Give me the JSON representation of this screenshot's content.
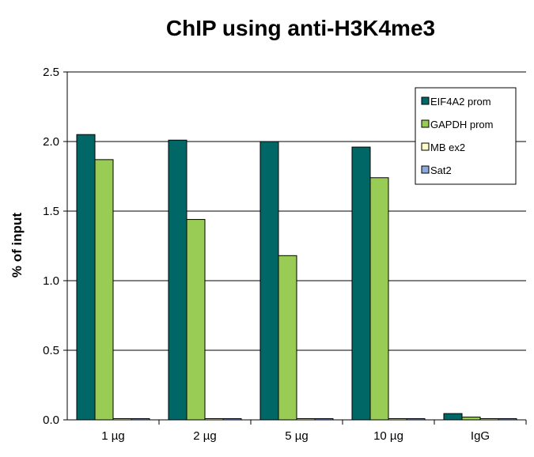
{
  "chart_data": {
    "type": "bar",
    "title": "ChIP using anti-H3K4me3",
    "xlabel": "",
    "ylabel": "% of input",
    "ylim": [
      0,
      2.5
    ],
    "yticks": [
      "0.0",
      "0.5",
      "1.0",
      "1.5",
      "2.0",
      "2.5"
    ],
    "categories": [
      "1 µg",
      "2 µg",
      "5 µg",
      "10 µg",
      "IgG"
    ],
    "series": [
      {
        "name": "EIF4A2 prom",
        "color": "#006666",
        "values": [
          2.05,
          2.01,
          2.0,
          1.96,
          0.045
        ]
      },
      {
        "name": "GAPDH prom",
        "color": "#99CC55",
        "values": [
          1.87,
          1.44,
          1.18,
          1.74,
          0.02
        ]
      },
      {
        "name": "MB ex2",
        "color": "#FFFFCC",
        "values": [
          0.003,
          0.008,
          0.003,
          0.008,
          0.004
        ]
      },
      {
        "name": "Sat2",
        "color": "#8EA9DB",
        "values": [
          0.002,
          0.004,
          0.002,
          0.008,
          0.008
        ]
      }
    ],
    "grid": "horizontal",
    "legend_position": "top-right"
  }
}
